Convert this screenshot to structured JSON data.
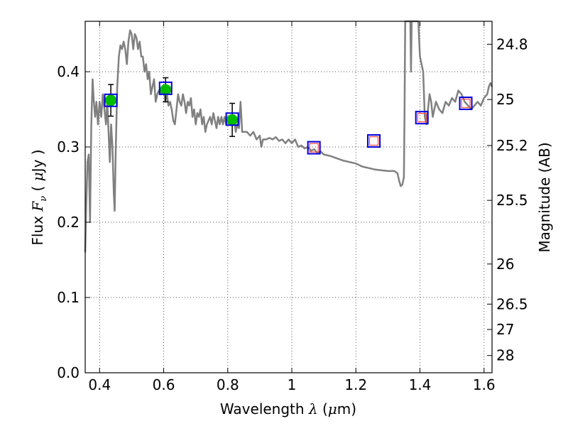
{
  "chart_data": {
    "type": "line",
    "title": "",
    "xlabel": {
      "prefix": "Wavelength  ",
      "symbol": "λ",
      "open": " (",
      "unit": "μ",
      "unit_rest": "m)"
    },
    "ylabel": {
      "prefix": "Flux  ",
      "symbol": "F",
      "subscript": "ν",
      "open": "  ( ",
      "unit": "μ",
      "unit_rest": "Jy )"
    },
    "y2label": "Magnitude (AB)",
    "xlim": [
      0.355,
      1.625
    ],
    "ylim": [
      0.0,
      0.467
    ],
    "grid": true,
    "x_ticks": [
      0.4,
      0.6,
      0.8,
      1.0,
      1.2,
      1.4,
      1.6
    ],
    "x_tick_labels": [
      "0.4",
      "0.6",
      "0.8",
      "1",
      "1.2",
      "1.4",
      "1.6"
    ],
    "y_ticks": [
      0.0,
      0.1,
      0.2,
      0.3,
      0.4
    ],
    "y_tick_labels": [
      "0.0",
      "0.1",
      "0.2",
      "0.3",
      "0.4"
    ],
    "y2_ticks": [
      {
        "label": "24.8",
        "flux": 0.4365
      },
      {
        "label": "25",
        "flux": 0.3631
      },
      {
        "label": "25.2",
        "flux": 0.302
      },
      {
        "label": "25.5",
        "flux": 0.2291
      },
      {
        "label": "26",
        "flux": 0.1445
      },
      {
        "label": "26.5",
        "flux": 0.0912
      },
      {
        "label": "27",
        "flux": 0.0575
      },
      {
        "label": "28",
        "flux": 0.0229
      }
    ],
    "colors": {
      "spectrum": "#808080",
      "observed": "#00bb00",
      "model_box": "#0000dd",
      "model_small": "#ff4444",
      "errorbar": "#000000",
      "grid": "#555555"
    },
    "series": [
      {
        "name": "model spectrum",
        "style": "line",
        "points": [
          [
            0.355,
            0.16
          ],
          [
            0.358,
            0.22
          ],
          [
            0.362,
            0.28
          ],
          [
            0.366,
            0.29
          ],
          [
            0.37,
            0.2
          ],
          [
            0.374,
            0.33
          ],
          [
            0.378,
            0.39
          ],
          [
            0.382,
            0.36
          ],
          [
            0.386,
            0.34
          ],
          [
            0.39,
            0.36
          ],
          [
            0.395,
            0.33
          ],
          [
            0.4,
            0.36
          ],
          [
            0.405,
            0.34
          ],
          [
            0.41,
            0.37
          ],
          [
            0.415,
            0.35
          ],
          [
            0.42,
            0.33
          ],
          [
            0.424,
            0.36
          ],
          [
            0.428,
            0.32
          ],
          [
            0.432,
            0.28
          ],
          [
            0.436,
            0.33
          ],
          [
            0.44,
            0.3
          ],
          [
            0.444,
            0.24
          ],
          [
            0.447,
            0.215
          ],
          [
            0.45,
            0.29
          ],
          [
            0.455,
            0.38
          ],
          [
            0.46,
            0.42
          ],
          [
            0.465,
            0.435
          ],
          [
            0.47,
            0.43
          ],
          [
            0.475,
            0.44
          ],
          [
            0.48,
            0.43
          ],
          [
            0.485,
            0.41
          ],
          [
            0.49,
            0.44
          ],
          [
            0.495,
            0.455
          ],
          [
            0.5,
            0.45
          ],
          [
            0.505,
            0.43
          ],
          [
            0.51,
            0.45
          ],
          [
            0.515,
            0.445
          ],
          [
            0.52,
            0.43
          ],
          [
            0.525,
            0.44
          ],
          [
            0.53,
            0.42
          ],
          [
            0.535,
            0.42
          ],
          [
            0.54,
            0.4
          ],
          [
            0.545,
            0.41
          ],
          [
            0.55,
            0.39
          ],
          [
            0.555,
            0.4
          ],
          [
            0.56,
            0.37
          ],
          [
            0.565,
            0.38
          ],
          [
            0.57,
            0.39
          ],
          [
            0.575,
            0.36
          ],
          [
            0.58,
            0.37
          ],
          [
            0.585,
            0.375
          ],
          [
            0.59,
            0.37
          ],
          [
            0.595,
            0.38
          ],
          [
            0.6,
            0.38
          ],
          [
            0.605,
            0.36
          ],
          [
            0.61,
            0.37
          ],
          [
            0.615,
            0.355
          ],
          [
            0.62,
            0.36
          ],
          [
            0.625,
            0.35
          ],
          [
            0.63,
            0.335
          ],
          [
            0.635,
            0.33
          ],
          [
            0.64,
            0.35
          ],
          [
            0.645,
            0.37
          ],
          [
            0.65,
            0.36
          ],
          [
            0.655,
            0.355
          ],
          [
            0.66,
            0.37
          ],
          [
            0.665,
            0.36
          ],
          [
            0.67,
            0.345
          ],
          [
            0.675,
            0.36
          ],
          [
            0.68,
            0.355
          ],
          [
            0.685,
            0.365
          ],
          [
            0.69,
            0.34
          ],
          [
            0.695,
            0.35
          ],
          [
            0.7,
            0.33
          ],
          [
            0.705,
            0.345
          ],
          [
            0.71,
            0.34
          ],
          [
            0.715,
            0.35
          ],
          [
            0.72,
            0.33
          ],
          [
            0.725,
            0.34
          ],
          [
            0.73,
            0.32
          ],
          [
            0.735,
            0.33
          ],
          [
            0.74,
            0.335
          ],
          [
            0.745,
            0.34
          ],
          [
            0.75,
            0.33
          ],
          [
            0.755,
            0.345
          ],
          [
            0.76,
            0.335
          ],
          [
            0.765,
            0.325
          ],
          [
            0.77,
            0.34
          ],
          [
            0.775,
            0.33
          ],
          [
            0.78,
            0.34
          ],
          [
            0.785,
            0.33
          ],
          [
            0.79,
            0.34
          ],
          [
            0.795,
            0.33
          ],
          [
            0.8,
            0.34
          ],
          [
            0.805,
            0.33
          ],
          [
            0.81,
            0.335
          ],
          [
            0.815,
            0.33
          ],
          [
            0.82,
            0.338
          ],
          [
            0.825,
            0.32
          ],
          [
            0.83,
            0.33
          ],
          [
            0.835,
            0.325
          ],
          [
            0.84,
            0.36
          ],
          [
            0.845,
            0.32
          ],
          [
            0.85,
            0.32
          ],
          [
            0.86,
            0.32
          ],
          [
            0.87,
            0.315
          ],
          [
            0.88,
            0.32
          ],
          [
            0.89,
            0.31
          ],
          [
            0.9,
            0.315
          ],
          [
            0.905,
            0.3
          ],
          [
            0.91,
            0.31
          ],
          [
            0.92,
            0.31
          ],
          [
            0.93,
            0.312
          ],
          [
            0.94,
            0.31
          ],
          [
            0.95,
            0.313
          ],
          [
            0.96,
            0.308
          ],
          [
            0.97,
            0.31
          ],
          [
            0.98,
            0.305
          ],
          [
            0.99,
            0.31
          ],
          [
            1.0,
            0.305
          ],
          [
            1.01,
            0.31
          ],
          [
            1.02,
            0.3
          ],
          [
            1.03,
            0.302
          ],
          [
            1.04,
            0.298
          ],
          [
            1.05,
            0.3
          ],
          [
            1.06,
            0.295
          ],
          [
            1.07,
            0.297
          ],
          [
            1.08,
            0.292
          ],
          [
            1.09,
            0.294
          ],
          [
            1.1,
            0.29
          ],
          [
            1.12,
            0.288
          ],
          [
            1.14,
            0.285
          ],
          [
            1.16,
            0.282
          ],
          [
            1.18,
            0.28
          ],
          [
            1.2,
            0.278
          ],
          [
            1.22,
            0.274
          ],
          [
            1.24,
            0.272
          ],
          [
            1.26,
            0.27
          ],
          [
            1.28,
            0.269
          ],
          [
            1.3,
            0.268
          ],
          [
            1.32,
            0.268
          ],
          [
            1.33,
            0.265
          ],
          [
            1.335,
            0.255
          ],
          [
            1.34,
            0.248
          ],
          [
            1.345,
            0.25
          ],
          [
            1.35,
            0.26
          ],
          [
            1.352,
            0.35
          ],
          [
            1.354,
            0.467
          ],
          [
            1.36,
            0.467
          ],
          [
            1.37,
            0.467
          ],
          [
            1.372,
            0.4
          ],
          [
            1.374,
            0.467
          ],
          [
            1.38,
            0.467
          ],
          [
            1.39,
            0.467
          ],
          [
            1.395,
            0.467
          ],
          [
            1.4,
            0.42
          ],
          [
            1.41,
            0.4
          ],
          [
            1.415,
            0.34
          ],
          [
            1.42,
            0.33
          ],
          [
            1.425,
            0.35
          ],
          [
            1.43,
            0.37
          ],
          [
            1.435,
            0.36
          ],
          [
            1.44,
            0.34
          ],
          [
            1.45,
            0.36
          ],
          [
            1.46,
            0.35
          ],
          [
            1.47,
            0.345
          ],
          [
            1.48,
            0.36
          ],
          [
            1.49,
            0.355
          ],
          [
            1.5,
            0.365
          ],
          [
            1.51,
            0.36
          ],
          [
            1.52,
            0.375
          ],
          [
            1.53,
            0.37
          ],
          [
            1.54,
            0.36
          ],
          [
            1.55,
            0.355
          ],
          [
            1.56,
            0.35
          ],
          [
            1.57,
            0.355
          ],
          [
            1.58,
            0.36
          ],
          [
            1.59,
            0.355
          ],
          [
            1.6,
            0.365
          ],
          [
            1.61,
            0.37
          ],
          [
            1.615,
            0.38
          ],
          [
            1.62,
            0.385
          ],
          [
            1.625,
            0.38
          ]
        ]
      },
      {
        "name": "observed photometry",
        "style": "markers",
        "points": [
          {
            "x": 0.435,
            "y": 0.362,
            "yerr": 0.021
          },
          {
            "x": 0.606,
            "y": 0.376,
            "yerr": 0.016
          },
          {
            "x": 0.814,
            "y": 0.336,
            "yerr": 0.022
          }
        ]
      },
      {
        "name": "model photometry",
        "style": "markers",
        "points": [
          {
            "x": 0.435,
            "y": 0.362,
            "small": false
          },
          {
            "x": 0.606,
            "y": 0.378,
            "small": false
          },
          {
            "x": 0.814,
            "y": 0.337,
            "small": false
          },
          {
            "x": 1.069,
            "y": 0.299,
            "small": true
          },
          {
            "x": 1.256,
            "y": 0.308,
            "small": true
          },
          {
            "x": 1.406,
            "y": 0.339,
            "small": true
          },
          {
            "x": 1.543,
            "y": 0.358,
            "small": true
          }
        ]
      }
    ]
  }
}
